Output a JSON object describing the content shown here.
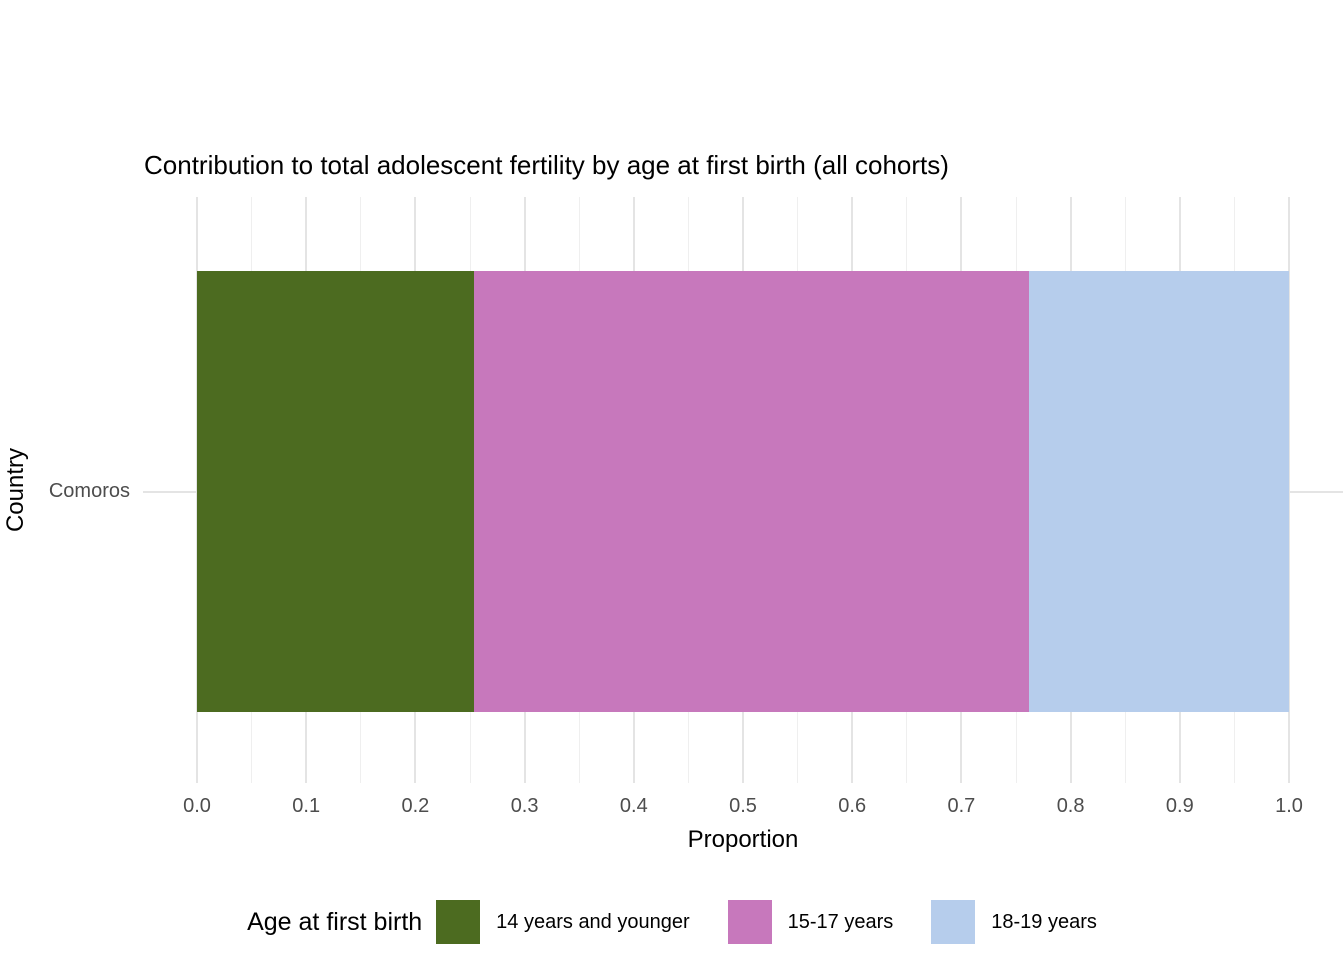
{
  "chart_data": {
    "type": "bar",
    "orientation": "horizontal",
    "stacked": true,
    "title": "Contribution to total adolescent fertility by age at first birth (all cohorts)",
    "xlabel": "Proportion",
    "ylabel": "Country",
    "categories": [
      "Comoros"
    ],
    "series": [
      {
        "name": "14 years and younger",
        "values": [
          0.254
        ],
        "color": "#4c6b20"
      },
      {
        "name": "15-17 years",
        "values": [
          0.508
        ],
        "color": "#c778bc"
      },
      {
        "name": "18-19 years",
        "values": [
          0.238
        ],
        "color": "#b6cdec"
      }
    ],
    "xlim": [
      0,
      1
    ],
    "x_ticks": [
      "0.0",
      "0.1",
      "0.2",
      "0.3",
      "0.4",
      "0.5",
      "0.6",
      "0.7",
      "0.8",
      "0.9",
      "1.0"
    ],
    "x_minor_step": 0.05,
    "grid": true,
    "legend_title": "Age at first birth",
    "legend_position": "bottom",
    "colors": {
      "grid_major": "#e4e4e4",
      "grid_minor": "#efefef",
      "tick_text": "#4d4d4d",
      "title_text": "#000000",
      "background": "#ffffff"
    }
  }
}
